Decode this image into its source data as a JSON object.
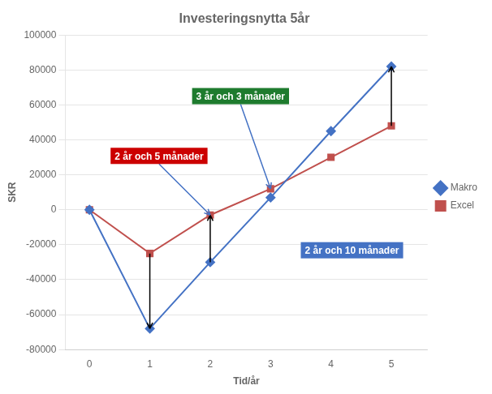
{
  "chart_data": {
    "type": "line",
    "title": "Investeringsnytta 5år",
    "xlabel": "Tid/år",
    "ylabel": "SKR",
    "x": [
      0,
      1,
      2,
      3,
      4,
      5
    ],
    "series": [
      {
        "name": "Makro",
        "color": "#4472C4",
        "marker": "diamond",
        "values": [
          0,
          -68000,
          -30000,
          7000,
          45000,
          82000
        ]
      },
      {
        "name": "Excel",
        "color": "#C0504D",
        "marker": "square",
        "values": [
          0,
          -25000,
          -3000,
          12000,
          30000,
          48000
        ]
      }
    ],
    "xlim": [
      -0.4,
      5.6
    ],
    "xticks": [
      0,
      1,
      2,
      3,
      4,
      5
    ],
    "ylim": [
      -80000,
      100000
    ],
    "yticks": [
      -80000,
      -60000,
      -40000,
      -20000,
      0,
      20000,
      40000,
      60000,
      80000,
      100000
    ],
    "grid": "y",
    "legend": "right",
    "annotations": [
      {
        "text": "2 år och 5 månader",
        "color": "#CC0000"
      },
      {
        "text": "3 år och 3 månader",
        "color": "#1E7B2E"
      },
      {
        "text": "2 år och 10 månader",
        "color": "#4472C4"
      }
    ]
  }
}
